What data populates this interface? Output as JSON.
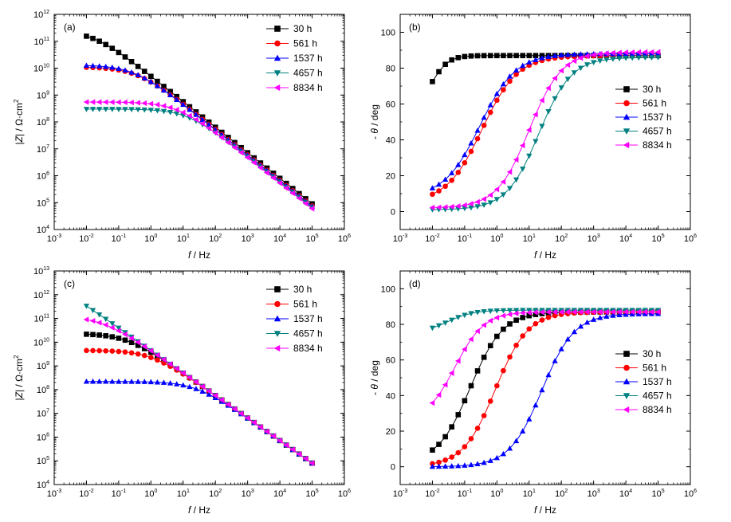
{
  "chart_data": [
    {
      "panel": "(a)",
      "type": "scatter",
      "x_scale": "log",
      "y_scale": "log",
      "xlim": [
        0.001,
        1000000
      ],
      "ylim": [
        10000,
        1000000000000
      ],
      "xlabel": {
        "italic": "f",
        "rest": " / Hz"
      },
      "ylabel": {
        "pre": "|",
        "italic": "Z",
        "post": "| / Ω·cm",
        "sup": "2"
      },
      "legend_position": "top-right",
      "series": [
        {
          "name": "30 h",
          "color": "#000000",
          "marker": "square",
          "lf": 250000000000.0,
          "hf": 90000.0,
          "fc": 0.008
        },
        {
          "name": "561 h",
          "color": "#ff0000",
          "marker": "circle",
          "lf": 11000000000.0,
          "hf": 75000.0,
          "fc": 0.2
        },
        {
          "name": "1537 h",
          "color": "#0000ff",
          "marker": "triangle-up",
          "lf": 13000000000.0,
          "hf": 72000.0,
          "fc": 0.2
        },
        {
          "name": "4657 h",
          "color": "#008080",
          "marker": "triangle-down",
          "lf": 300000000.0,
          "hf": 65000.0,
          "fc": 6
        },
        {
          "name": "8834 h",
          "color": "#ff00ff",
          "marker": "triangle-left",
          "lf": 550000000.0,
          "hf": 60000.0,
          "fc": 3
        }
      ]
    },
    {
      "panel": "(b)",
      "type": "scatter",
      "x_scale": "log",
      "y_scale": "linear",
      "xlim": [
        0.001,
        1000000
      ],
      "ylim": [
        -10,
        110
      ],
      "yticks": [
        0,
        20,
        40,
        60,
        80,
        100
      ],
      "xlabel": {
        "italic": "f",
        "rest": " / Hz"
      },
      "ylabel": {
        "pre": "- ",
        "italic": "θ",
        "post": " / deg",
        "sup": ""
      },
      "legend_position": "right",
      "series": [
        {
          "name": "30 h",
          "color": "#000000",
          "marker": "square",
          "low": 58,
          "high": 87,
          "fm": 0.01,
          "w": 0.25
        },
        {
          "name": "561 h",
          "color": "#ff0000",
          "marker": "circle",
          "low": 5,
          "high": 87,
          "fm": 0.35,
          "w": 0.55
        },
        {
          "name": "1537 h",
          "color": "#0000ff",
          "marker": "triangle-up",
          "low": 8,
          "high": 88,
          "fm": 0.3,
          "w": 0.55
        },
        {
          "name": "4657 h",
          "color": "#008080",
          "marker": "triangle-down",
          "low": 1,
          "high": 86,
          "fm": 20,
          "w": 0.5
        },
        {
          "name": "8834 h",
          "color": "#ff00ff",
          "marker": "triangle-left",
          "low": 2,
          "high": 89,
          "fm": 10,
          "w": 0.5
        }
      ]
    },
    {
      "panel": "(c)",
      "type": "scatter",
      "x_scale": "log",
      "y_scale": "log",
      "xlim": [
        0.001,
        1000000
      ],
      "ylim": [
        10000,
        10000000000000
      ],
      "xlabel": {
        "italic": "f",
        "rest": " / Hz"
      },
      "ylabel": {
        "pre": "|",
        "italic": "Z",
        "post": "| / Ω·cm",
        "sup": "2"
      },
      "legend_position": "top-right",
      "series": [
        {
          "name": "30 h",
          "color": "#000000",
          "marker": "square",
          "lf": 23000000000.0,
          "hf": 80000.0,
          "fc": 0.12
        },
        {
          "name": "561 h",
          "color": "#ff0000",
          "marker": "circle",
          "lf": 4500000000.0,
          "hf": 80000.0,
          "fc": 0.6
        },
        {
          "name": "1537 h",
          "color": "#0000ff",
          "marker": "triangle-up",
          "lf": 220000000.0,
          "hf": 80000.0,
          "fc": 12
        },
        {
          "name": "4657 h",
          "color": "#008080",
          "marker": "triangle-down",
          "lf": 5000000000000.0,
          "hf": 80000.0,
          "fc": 0.0012
        },
        {
          "name": "8834 h",
          "color": "#ff00ff",
          "marker": "triangle-left",
          "lf": 120000000000.0,
          "hf": 80000.0,
          "fc": 0.025
        }
      ]
    },
    {
      "panel": "(d)",
      "type": "scatter",
      "x_scale": "log",
      "y_scale": "linear",
      "xlim": [
        0.001,
        1000000
      ],
      "ylim": [
        -10,
        110
      ],
      "yticks": [
        0,
        20,
        40,
        60,
        80,
        100
      ],
      "xlabel": {
        "italic": "f",
        "rest": " / Hz"
      },
      "ylabel": {
        "pre": "- ",
        "italic": "θ",
        "post": " / deg",
        "sup": ""
      },
      "legend_position": "right",
      "series": [
        {
          "name": "30 h",
          "color": "#000000",
          "marker": "square",
          "low": 2,
          "high": 87,
          "fm": 0.15,
          "w": 0.5
        },
        {
          "name": "561 h",
          "color": "#ff0000",
          "marker": "circle",
          "low": 0,
          "high": 87,
          "fm": 0.9,
          "w": 0.5
        },
        {
          "name": "1537 h",
          "color": "#0000ff",
          "marker": "triangle-up",
          "low": 0,
          "high": 86,
          "fm": 25,
          "w": 0.5
        },
        {
          "name": "4657 h",
          "color": "#008080",
          "marker": "triangle-down",
          "low": 75,
          "high": 88,
          "fm": 0.03,
          "w": 0.4
        },
        {
          "name": "8834 h",
          "color": "#ff00ff",
          "marker": "triangle-left",
          "low": 25,
          "high": 87,
          "fm": 0.05,
          "w": 0.45
        }
      ]
    }
  ]
}
